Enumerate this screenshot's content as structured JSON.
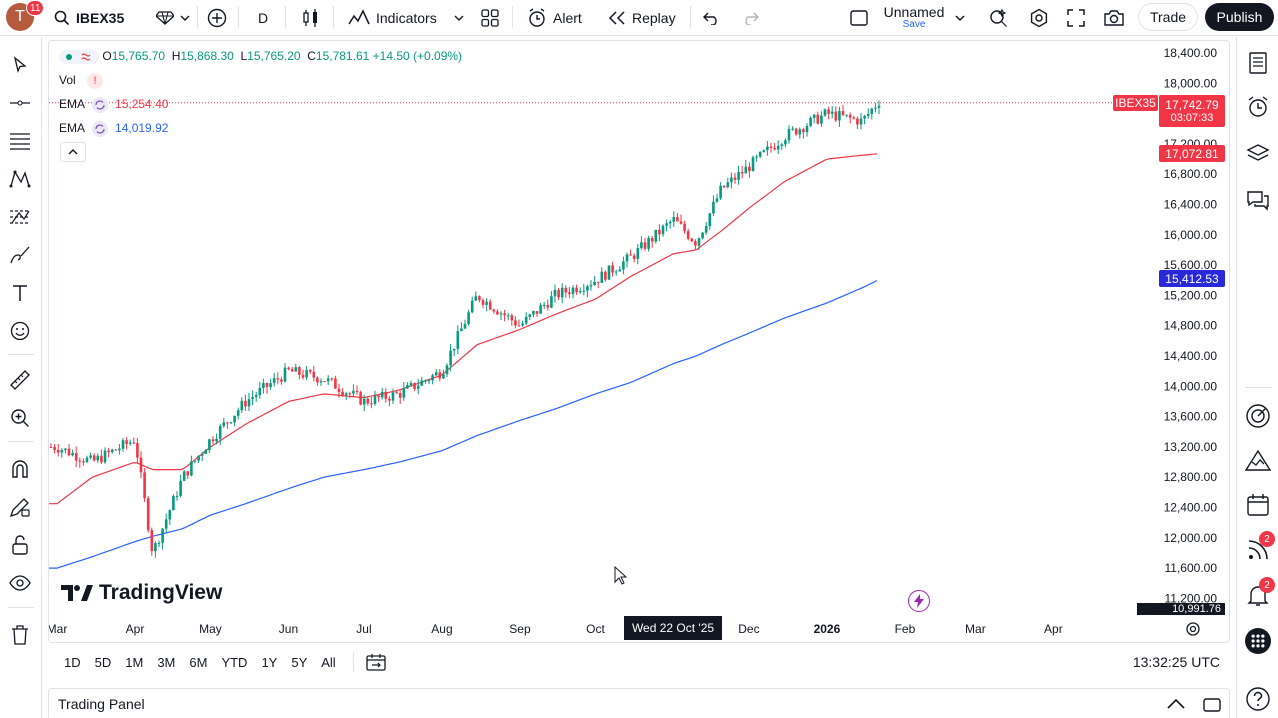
{
  "topbar": {
    "avatar_letter": "T",
    "avatar_badge": "11",
    "symbol": "IBEX35",
    "interval": "D",
    "indicators_label": "Indicators",
    "alert_label": "Alert",
    "replay_label": "Replay",
    "layout_name": "Unnamed",
    "layout_save": "Save",
    "trade_label": "Trade",
    "publish_label": "Publish"
  },
  "legend": {
    "open_label": "O",
    "open": "15,765.70",
    "high_label": "H",
    "high": "15,868.30",
    "low_label": "L",
    "low": "15,765.20",
    "close_label": "C",
    "close": "15,781.61",
    "change": "+14.50 (+0.09%)",
    "vol_label": "Vol",
    "vol_warning": "!",
    "ema1_label": "EMA",
    "ema1_value": "15,254.40",
    "ema2_label": "EMA",
    "ema2_value": "14,019.92"
  },
  "price_labels": {
    "symbol_tag": "IBEX35",
    "last_price": "17,742.79",
    "countdown": "03:07:33",
    "ema1_axis": "17,072.81",
    "ema2_axis": "15,412.53",
    "bottom_axis": "10,991.76"
  },
  "crosshair_date": "Wed 22 Oct '25",
  "watermark": "TradingView",
  "range_buttons": [
    "1D",
    "5D",
    "1M",
    "3M",
    "6M",
    "YTD",
    "1Y",
    "5Y",
    "All"
  ],
  "clock": "13:32:25 UTC",
  "trading_panel_label": "Trading Panel",
  "right_badges": {
    "feed": "2",
    "alerts": "2"
  },
  "colors": {
    "up": "#089981",
    "down": "#f23645",
    "ema1": "#f23645",
    "ema2": "#2962ff",
    "publish_bg": "#131722"
  },
  "chart_data": {
    "type": "line",
    "title": "",
    "xlabel": "",
    "ylabel": "",
    "price_ticks": [
      "18,400.00",
      "18,000.00",
      "17,200.00",
      "16,800.00",
      "16,400.00",
      "16,000.00",
      "15,600.00",
      "15,200.00",
      "14,800.00",
      "14,400.00",
      "14,000.00",
      "13,600.00",
      "13,200.00",
      "12,800.00",
      "12,400.00",
      "12,000.00",
      "11,600.00",
      "11,200.00"
    ],
    "time_ticks": [
      "Mar",
      "Apr",
      "May",
      "Jun",
      "Jul",
      "Aug",
      "Sep",
      "Oct",
      "Dec",
      "2026",
      "Feb",
      "Mar",
      "Apr"
    ],
    "ylim": [
      10900,
      18600
    ],
    "x": [
      "2025-03-01",
      "2025-03-15",
      "2025-04-01",
      "2025-04-08",
      "2025-04-20",
      "2025-05-01",
      "2025-05-15",
      "2025-06-01",
      "2025-06-15",
      "2025-07-01",
      "2025-07-15",
      "2025-08-01",
      "2025-08-15",
      "2025-09-01",
      "2025-09-15",
      "2025-10-01",
      "2025-10-15",
      "2025-11-01",
      "2025-11-10",
      "2025-11-20",
      "2025-12-01",
      "2025-12-15",
      "2026-01-01",
      "2026-01-15",
      "2026-01-22"
    ],
    "series": [
      {
        "name": "IBEX35",
        "values": [
          13200,
          13000,
          13300,
          11800,
          12800,
          13300,
          13800,
          14200,
          14100,
          13800,
          13900,
          14200,
          15200,
          14800,
          15200,
          15400,
          15700,
          16200,
          15900,
          16600,
          16900,
          17300,
          17600,
          17500,
          17780
        ]
      },
      {
        "name": "EMA",
        "values": [
          12450,
          12800,
          13000,
          12900,
          12900,
          13200,
          13500,
          13800,
          13900,
          13850,
          13950,
          14150,
          14550,
          14750,
          14950,
          15150,
          15450,
          15750,
          15800,
          16050,
          16350,
          16700,
          17000,
          17050,
          17073
        ]
      },
      {
        "name": "EMA",
        "values": [
          11600,
          11750,
          11950,
          12020,
          12120,
          12300,
          12450,
          12650,
          12800,
          12900,
          13000,
          13150,
          13350,
          13550,
          13700,
          13900,
          14050,
          14300,
          14400,
          14550,
          14700,
          14900,
          15100,
          15300,
          15413
        ]
      }
    ]
  }
}
